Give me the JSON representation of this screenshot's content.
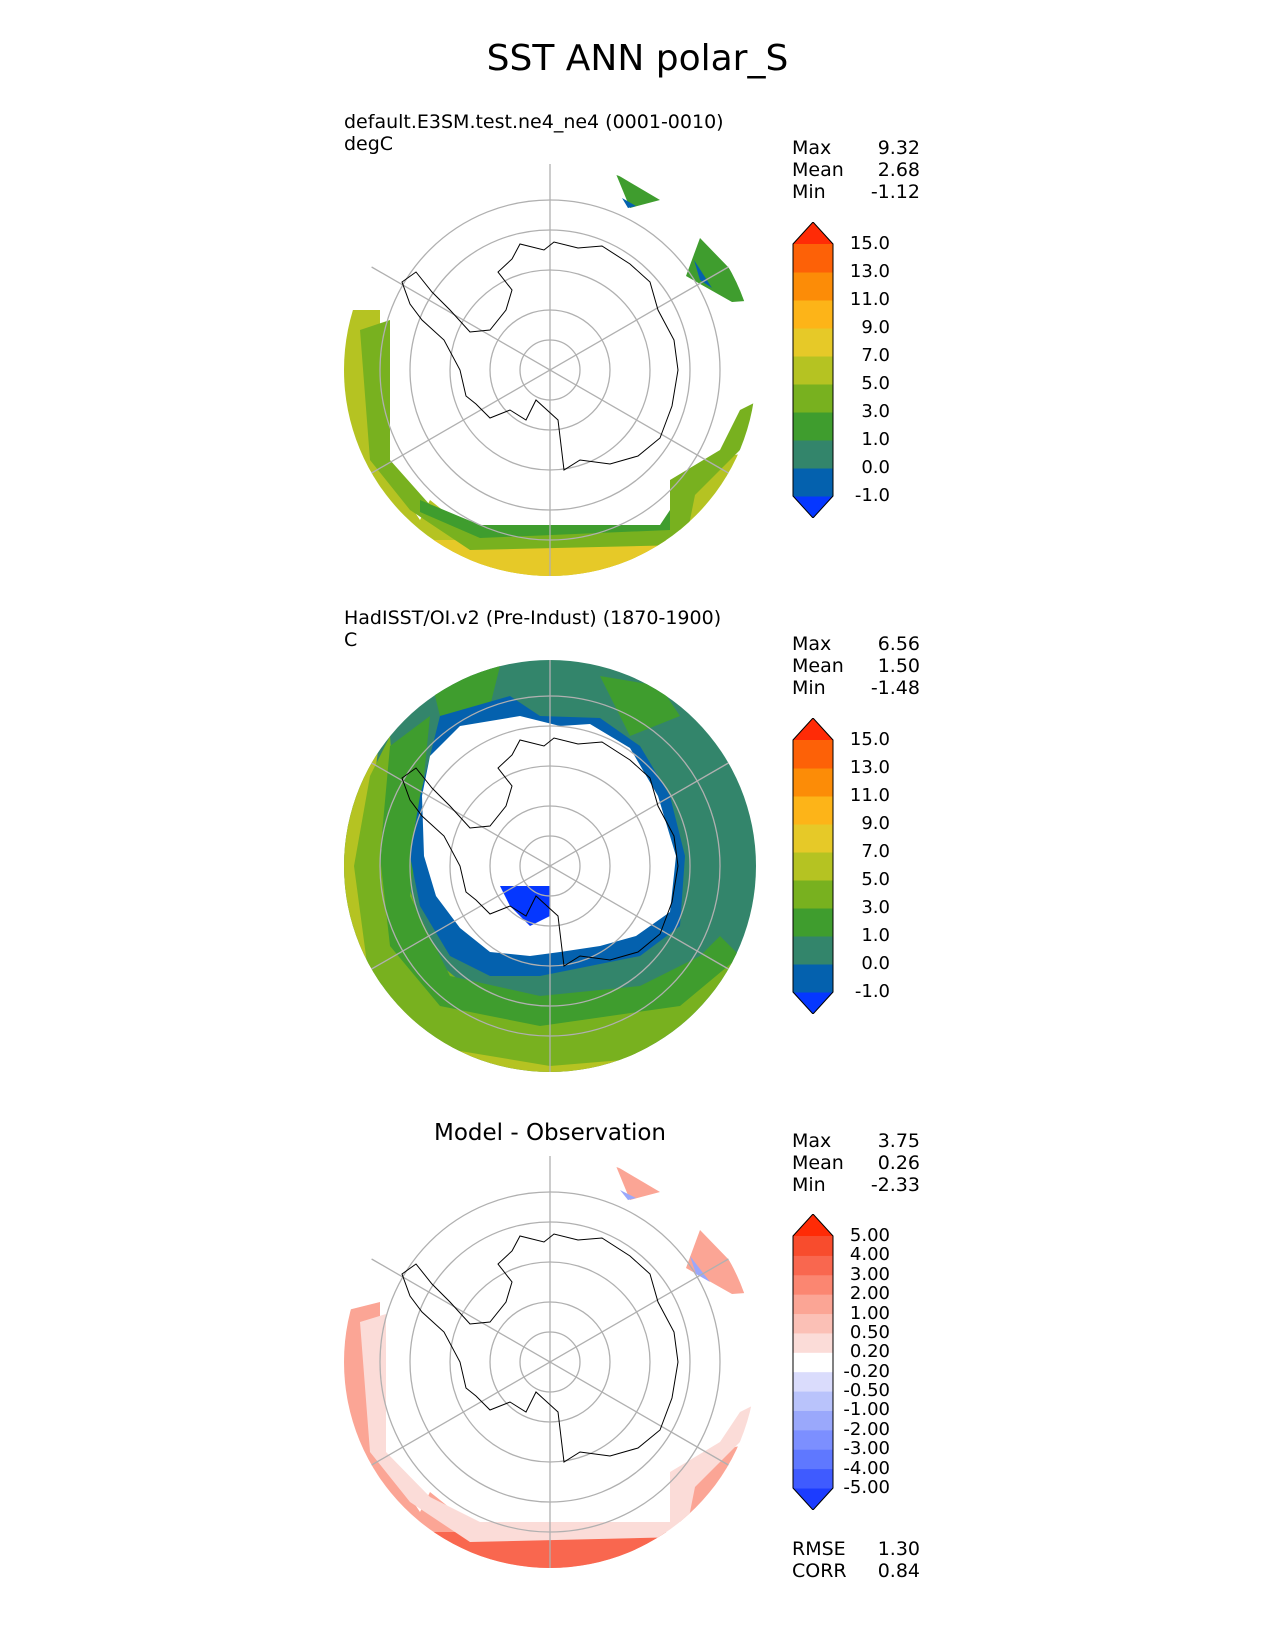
{
  "figure": {
    "title": "SST ANN polar_S",
    "colors": {
      "sst": [
        "#0537ff",
        "#0461ae",
        "#33856b",
        "#3f9d2e",
        "#78b11f",
        "#b5c322",
        "#e6c928",
        "#fdb418",
        "#fc8c07",
        "#fd6107",
        "#ff2b06"
      ],
      "diff": [
        "#1c3cff",
        "#3f5bff",
        "#5f78ff",
        "#7c8fff",
        "#9aa8fb",
        "#b9c3fb",
        "#dadcfc",
        "#ffffff",
        "#fbdcd8",
        "#fbc0b6",
        "#fba595",
        "#fb8671",
        "#f9674f",
        "#f84c2d",
        "#ff2b06"
      ]
    }
  },
  "panels": [
    {
      "id": "test",
      "label_line1": "default.E3SM.test.ne4_ne4 (0001-0010)",
      "label_line2": "degC",
      "stats": {
        "max_label": "Max",
        "max": "9.32",
        "mean_label": "Mean",
        "mean": "2.68",
        "min_label": "Min",
        "min": "-1.12"
      },
      "colorbar_ticks": [
        "15.0",
        "13.0",
        "11.0",
        "9.0",
        "7.0",
        "5.0",
        "3.0",
        "1.0",
        "0.0",
        "-1.0"
      ]
    },
    {
      "id": "reference",
      "label_line1": "HadISST/OI.v2 (Pre-Indust) (1870-1900)",
      "label_line2": "C",
      "stats": {
        "max_label": "Max",
        "max": "6.56",
        "mean_label": "Mean",
        "mean": "1.50",
        "min_label": "Min",
        "min": "-1.48"
      },
      "colorbar_ticks": [
        "15.0",
        "13.0",
        "11.0",
        "9.0",
        "7.0",
        "5.0",
        "3.0",
        "1.0",
        "0.0",
        "-1.0"
      ]
    },
    {
      "id": "diff",
      "center_title": "Model - Observation",
      "stats": {
        "max_label": "Max",
        "max": "3.75",
        "mean_label": "Mean",
        "mean": "0.26",
        "min_label": "Min",
        "min": "-2.33"
      },
      "colorbar_ticks": [
        "5.00",
        "4.00",
        "3.00",
        "2.00",
        "1.00",
        "0.50",
        "0.20",
        "-0.20",
        "-0.50",
        "-1.00",
        "-2.00",
        "-3.00",
        "-4.00",
        "-5.00"
      ],
      "metrics": {
        "rmse_label": "RMSE",
        "rmse": "1.30",
        "corr_label": "CORR",
        "corr": "0.84"
      }
    }
  ]
}
